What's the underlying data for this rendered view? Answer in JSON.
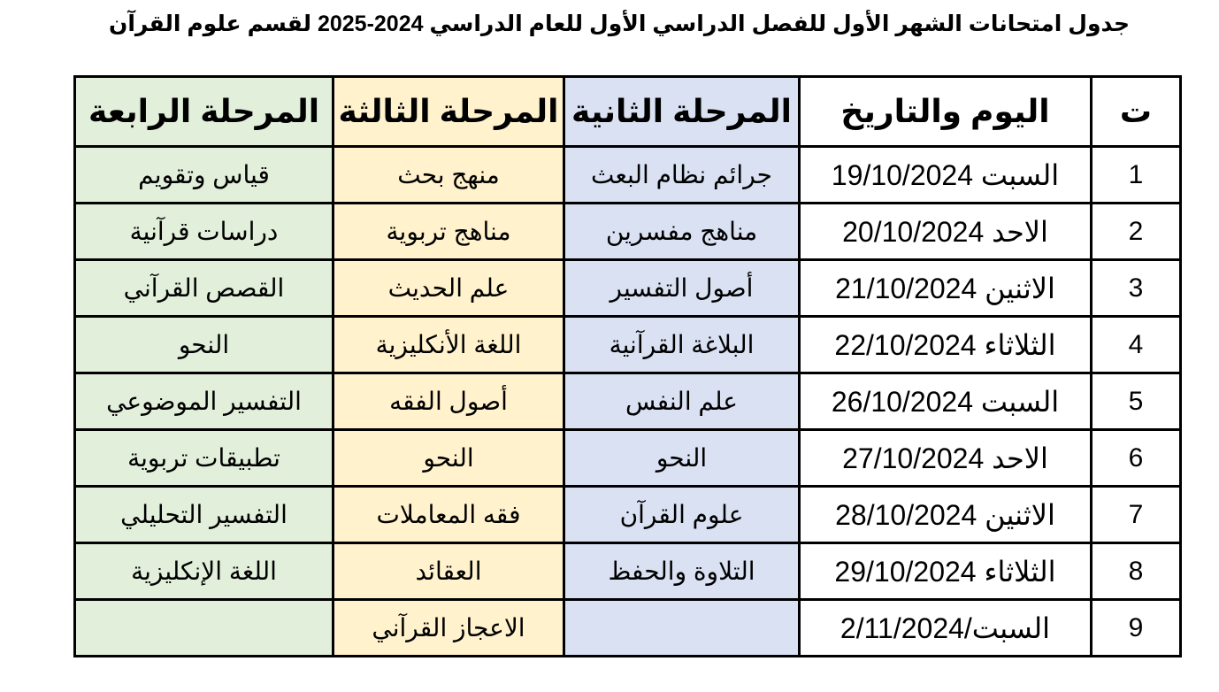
{
  "title": "جدول امتحانات الشهر الأول للفصل الدراسي الأول للعام الدراسي 2024-2025 لقسم علوم القرآن",
  "headers": [
    "ت",
    "اليوم والتاريخ",
    "المرحلة الثانية",
    "المرحلة الثالثة",
    "المرحلة الرابعة"
  ],
  "column_colors": {
    "stage2": "#d9e1f2",
    "stage3": "#fff2cc",
    "stage4": "#e2efda"
  },
  "rows": [
    {
      "n": "1",
      "date": "السبت 19/10/2024",
      "s2": "جرائم نظام البعث",
      "s3": "منهج بحث",
      "s4": "قياس وتقويم"
    },
    {
      "n": "2",
      "date": "الاحد 20/10/2024",
      "s2": "مناهج مفسرين",
      "s3": "مناهج تربوية",
      "s4": "دراسات قرآنية"
    },
    {
      "n": "3",
      "date": "الاثنين 21/10/2024",
      "s2": "أصول التفسير",
      "s3": "علم الحديث",
      "s4": "القصص القرآني"
    },
    {
      "n": "4",
      "date": "الثلاثاء 22/10/2024",
      "s2": "البلاغة القرآنية",
      "s3": "اللغة الأنكليزية",
      "s4": "النحو"
    },
    {
      "n": "5",
      "date": "السبت 26/10/2024",
      "s2": "علم النفس",
      "s3": "أصول الفقه",
      "s4": "التفسير الموضوعي"
    },
    {
      "n": "6",
      "date": "الاحد 27/10/2024",
      "s2": "النحو",
      "s3": "النحو",
      "s4": "تطبيقات تربوية"
    },
    {
      "n": "7",
      "date": "الاثنين 28/10/2024",
      "s2": "علوم القرآن",
      "s3": "فقه المعاملات",
      "s4": "التفسير التحليلي"
    },
    {
      "n": "8",
      "date": "الثلاثاء 29/10/2024",
      "s2": "التلاوة والحفظ",
      "s3": "العقائد",
      "s4": "اللغة الإنكليزية"
    },
    {
      "n": "9",
      "date": "السبت/2/11/2024",
      "s2": "",
      "s3": "الاعجاز القرآني",
      "s4": ""
    }
  ]
}
